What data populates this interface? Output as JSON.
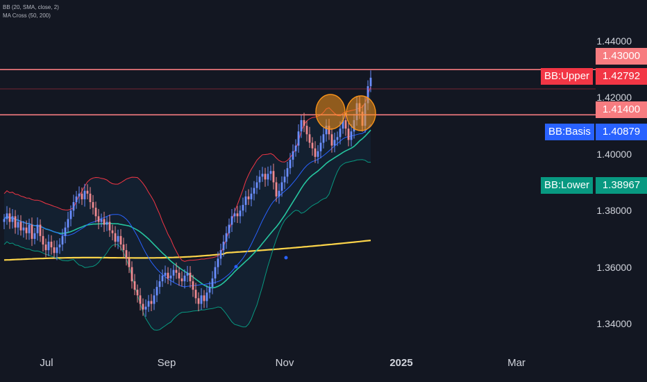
{
  "legend": {
    "bb": "BB (20, SMA, close, 2)",
    "ma_cross": "MA Cross (50, 200)"
  },
  "colors": {
    "background": "#131722",
    "candle_up": "#6a8eff",
    "candle_down": "#f08a90",
    "bb_upper": "#f23645",
    "bb_basis": "#2962ff",
    "bb_lower": "#089981",
    "ma50": "#26c6a0",
    "ma200": "#fdd54a",
    "hline": "#f77c80",
    "circle": "#f7931a"
  },
  "price_tags": {
    "level_high": "1.43000",
    "bb_upper_name": "BB:Upper",
    "bb_upper": "1.42792",
    "level_low": "1.41400",
    "bb_basis_name": "BB:Basis",
    "bb_basis": "1.40879",
    "bb_lower_name": "BB:Lower",
    "bb_lower": "1.38967"
  },
  "chart_data": {
    "type": "candlestick",
    "symbol_indicators": [
      "BB (20, SMA, close, 2)",
      "MA Cross (50, 200)"
    ],
    "ylim": [
      1.333,
      1.452
    ],
    "y_ticks": [
      "1.44000",
      "1.42000",
      "1.40000",
      "1.38000",
      "1.36000",
      "1.34000"
    ],
    "x_ticks": [
      {
        "label": "Jul",
        "bold": false
      },
      {
        "label": "Sep",
        "bold": false
      },
      {
        "label": "Nov",
        "bold": false
      },
      {
        "label": "2025",
        "bold": true
      },
      {
        "label": "Mar",
        "bold": false
      }
    ],
    "horizontal_levels": [
      1.43,
      1.414
    ],
    "bollinger_last": {
      "upper": 1.42792,
      "basis": 1.40879,
      "lower": 1.38967
    },
    "closes": [
      1.377,
      1.379,
      1.376,
      1.378,
      1.374,
      1.376,
      1.373,
      1.374,
      1.372,
      1.375,
      1.37,
      1.372,
      1.375,
      1.371,
      1.368,
      1.366,
      1.369,
      1.367,
      1.365,
      1.367,
      1.368,
      1.371,
      1.374,
      1.377,
      1.38,
      1.383,
      1.385,
      1.386,
      1.384,
      1.387,
      1.386,
      1.383,
      1.381,
      1.378,
      1.376,
      1.377,
      1.375,
      1.376,
      1.373,
      1.372,
      1.369,
      1.371,
      1.368,
      1.366,
      1.363,
      1.36,
      1.355,
      1.352,
      1.35,
      1.347,
      1.345,
      1.346,
      1.348,
      1.347,
      1.35,
      1.353,
      1.355,
      1.357,
      1.358,
      1.356,
      1.357,
      1.359,
      1.358,
      1.356,
      1.355,
      1.357,
      1.358,
      1.355,
      1.352,
      1.349,
      1.347,
      1.35,
      1.348,
      1.351,
      1.353,
      1.356,
      1.36,
      1.363,
      1.366,
      1.369,
      1.372,
      1.375,
      1.378,
      1.379,
      1.378,
      1.38,
      1.382,
      1.385,
      1.384,
      1.386,
      1.388,
      1.39,
      1.392,
      1.393,
      1.391,
      1.393,
      1.394,
      1.39,
      1.385,
      1.387,
      1.39,
      1.392,
      1.395,
      1.398,
      1.401,
      1.403,
      1.408,
      1.412,
      1.41,
      1.407,
      1.404,
      1.402,
      1.399,
      1.401,
      1.404,
      1.407,
      1.41,
      1.407,
      1.403,
      1.405,
      1.406,
      1.409,
      1.412,
      1.409,
      1.405,
      1.408,
      1.412,
      1.418,
      1.415,
      1.41,
      1.418,
      1.424,
      1.427
    ]
  }
}
